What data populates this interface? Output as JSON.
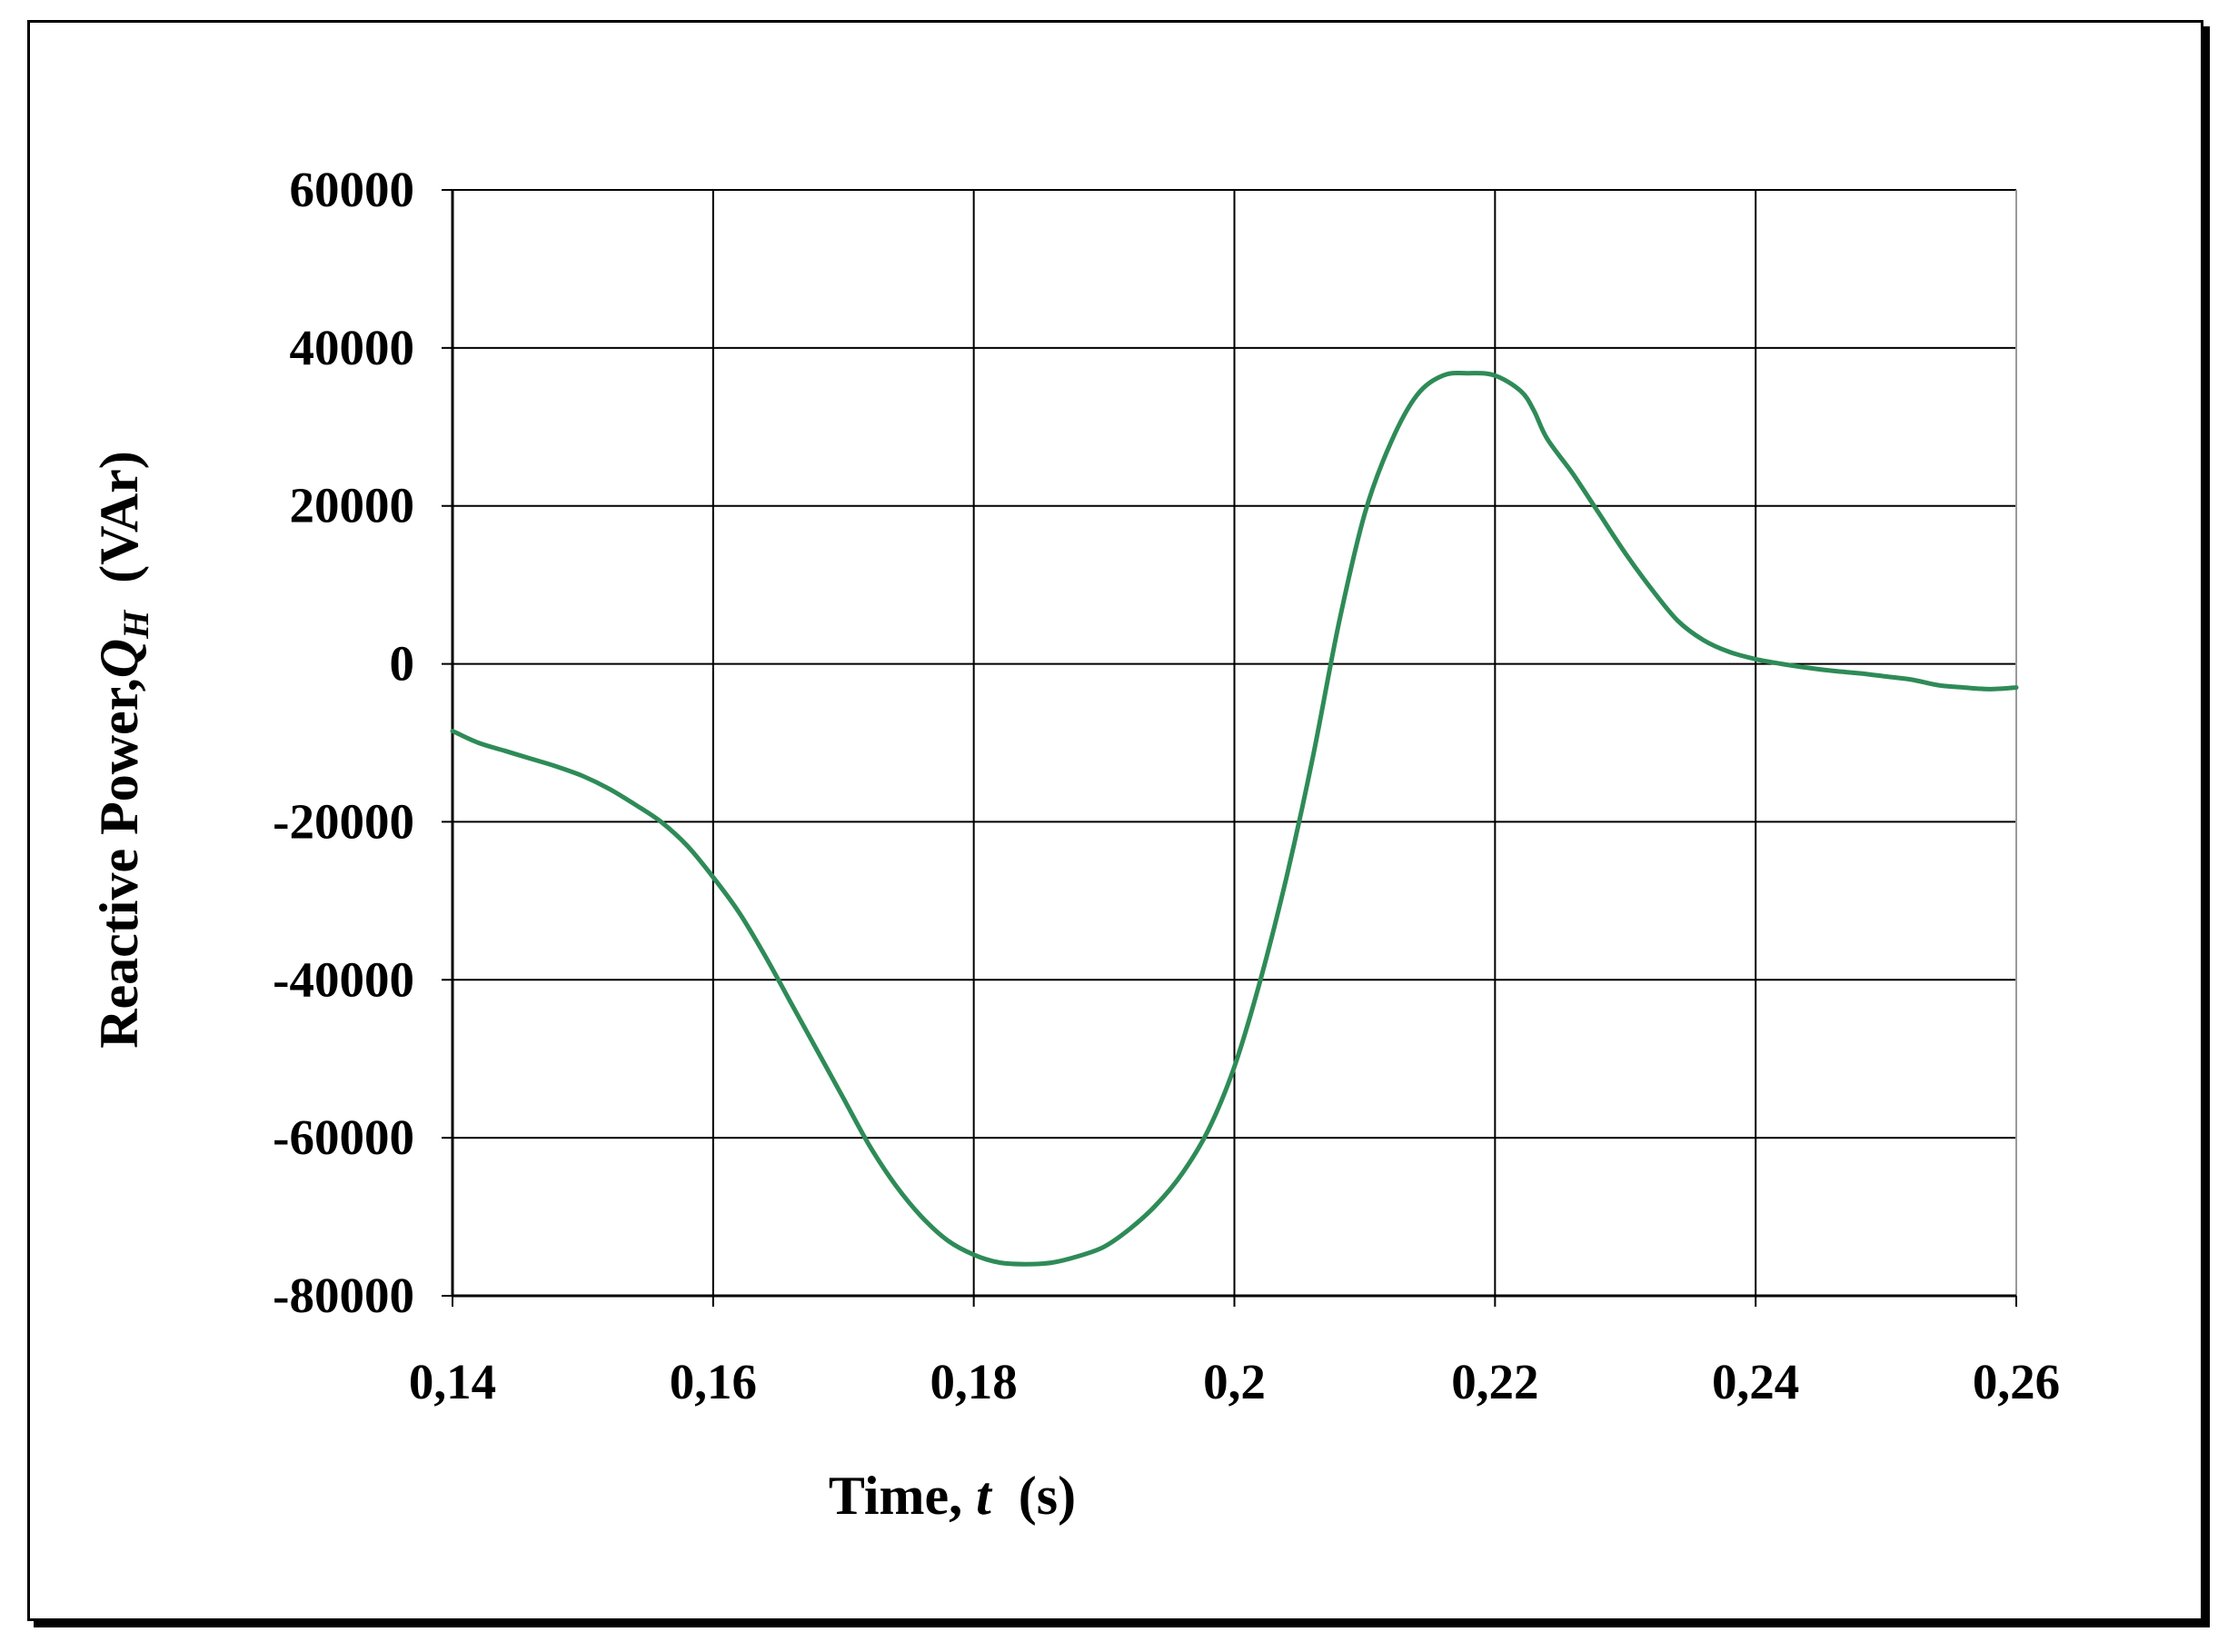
{
  "chart_data": {
    "type": "line",
    "xlabel": {
      "prefix": "Time, ",
      "var": "t",
      "unit": "(s)"
    },
    "ylabel": {
      "prefix": "Reactive Power,",
      "var": "Q",
      "sub": "H",
      "unit": "(VAr)"
    },
    "xlim": [
      0.14,
      0.26
    ],
    "ylim": [
      -80000,
      60000
    ],
    "x_ticks": [
      0.14,
      0.16,
      0.18,
      0.2,
      0.22,
      0.24,
      0.26
    ],
    "x_tick_labels": [
      "0,14",
      "0,16",
      "0,18",
      "0,2",
      "0,22",
      "0,24",
      "0,26"
    ],
    "y_ticks": [
      60000,
      40000,
      20000,
      0,
      -20000,
      -40000,
      -60000,
      -80000
    ],
    "y_tick_labels": [
      "60000",
      "40000",
      "20000",
      "0",
      "-20000",
      "-40000",
      "-60000",
      "-80000"
    ],
    "grid": true,
    "legend": "none",
    "series": [
      {
        "color": "#2e8b57",
        "x": [
          0.14,
          0.142,
          0.144,
          0.146,
          0.148,
          0.15,
          0.152,
          0.154,
          0.156,
          0.158,
          0.16,
          0.162,
          0.164,
          0.166,
          0.168,
          0.17,
          0.172,
          0.174,
          0.176,
          0.178,
          0.18,
          0.182,
          0.184,
          0.186,
          0.188,
          0.19,
          0.192,
          0.194,
          0.196,
          0.198,
          0.2,
          0.202,
          0.204,
          0.206,
          0.208,
          0.21,
          0.212,
          0.214,
          0.216,
          0.218,
          0.22,
          0.222,
          0.223,
          0.224,
          0.226,
          0.228,
          0.23,
          0.232,
          0.234,
          0.236,
          0.238,
          0.24,
          0.242,
          0.244,
          0.246,
          0.248,
          0.25,
          0.252,
          0.254,
          0.256,
          0.258,
          0.26
        ],
        "y": [
          -8500,
          -10000,
          -11000,
          -12000,
          -13000,
          -14200,
          -15800,
          -17800,
          -20000,
          -23000,
          -27000,
          -31500,
          -37000,
          -43000,
          -49000,
          -55000,
          -61000,
          -66000,
          -70000,
          -73000,
          -74800,
          -75800,
          -76000,
          -75800,
          -75000,
          -73800,
          -71500,
          -68500,
          -64500,
          -59000,
          -51000,
          -40000,
          -27000,
          -12000,
          5000,
          19000,
          28000,
          34000,
          36500,
          36800,
          36500,
          34500,
          32000,
          28500,
          24000,
          19000,
          14000,
          9500,
          5500,
          3000,
          1500,
          600,
          0,
          -500,
          -900,
          -1200,
          -1600,
          -2000,
          -2700,
          -3000,
          -3200,
          -3000
        ]
      }
    ]
  }
}
